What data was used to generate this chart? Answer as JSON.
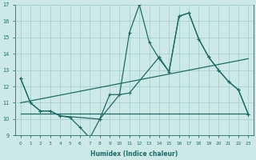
{
  "xlabel": "Humidex (Indice chaleur)",
  "xlim": [
    -0.5,
    23.5
  ],
  "ylim": [
    9,
    17
  ],
  "xticks": [
    0,
    1,
    2,
    3,
    4,
    5,
    6,
    7,
    8,
    9,
    10,
    11,
    12,
    13,
    14,
    15,
    16,
    17,
    18,
    19,
    20,
    21,
    22,
    23
  ],
  "yticks": [
    9,
    10,
    11,
    12,
    13,
    14,
    15,
    16,
    17
  ],
  "bg_color": "#cce9e8",
  "grid_color": "#aad4d3",
  "line_color": "#1d6b65",
  "line1_x": [
    0,
    1,
    2,
    3,
    4,
    5,
    6,
    7,
    8,
    9,
    10,
    11,
    12,
    13,
    14,
    15,
    16,
    17,
    18,
    19,
    20,
    21,
    22,
    23
  ],
  "line1_y": [
    12.5,
    11.0,
    10.5,
    10.5,
    10.2,
    10.1,
    9.5,
    8.85,
    10.0,
    11.5,
    11.5,
    15.3,
    17.0,
    14.7,
    13.7,
    12.9,
    16.3,
    16.5,
    14.9,
    13.8,
    13.0,
    12.3,
    11.8,
    10.3
  ],
  "line2_x": [
    0,
    1,
    2,
    3,
    4,
    8,
    10,
    11,
    14,
    15,
    16,
    17,
    18,
    19,
    20,
    21,
    22,
    23
  ],
  "line2_y": [
    12.5,
    11.0,
    10.5,
    10.5,
    10.2,
    10.0,
    11.5,
    11.6,
    13.8,
    12.9,
    16.3,
    16.5,
    14.9,
    13.8,
    13.0,
    12.3,
    11.8,
    10.3
  ],
  "line3_x": [
    0,
    23
  ],
  "line3_y": [
    10.35,
    10.35
  ],
  "line4_x": [
    0,
    23
  ],
  "line4_y": [
    11.0,
    13.7
  ]
}
